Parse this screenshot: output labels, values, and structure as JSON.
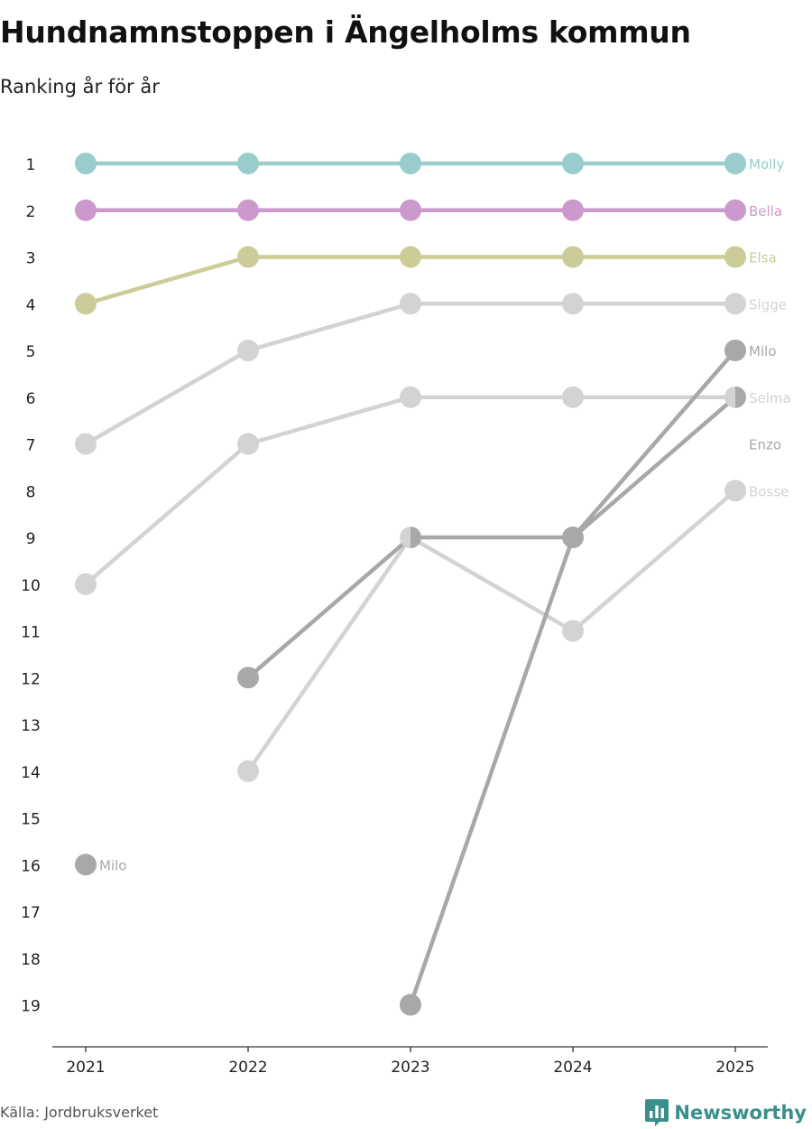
{
  "header": {
    "title": "Hundnamnstoppen i Ängelholms kommun",
    "subtitle": "Ranking år för år"
  },
  "footer": {
    "source": "Källa: Jordbruksverket",
    "brand": "Newsworthy",
    "brand_icon": "bar-chart-icon",
    "brand_color": "#3a8f8c"
  },
  "chart_data": {
    "type": "line",
    "title": "Hundnamnstoppen i Ängelholms kommun",
    "subtitle": "Ranking år för år",
    "x": [
      "2021",
      "2022",
      "2023",
      "2024",
      "2025"
    ],
    "y_ticks": [
      1,
      2,
      3,
      4,
      5,
      6,
      7,
      8,
      9,
      10,
      11,
      12,
      13,
      14,
      15,
      16,
      17,
      18,
      19
    ],
    "ylim": [
      1,
      19
    ],
    "y_inverted": true,
    "xlabel": "",
    "ylabel": "",
    "series": [
      {
        "name": "Bosse",
        "color": "#d3d3d3",
        "ranks": [
          null,
          14,
          9,
          11,
          8
        ]
      },
      {
        "name": "Sigge",
        "color": "#d3d3d3",
        "ranks": [
          7,
          5,
          4,
          4,
          4
        ]
      },
      {
        "name": "Selma",
        "color": "#d3d3d3",
        "ranks": [
          10,
          7,
          6,
          6,
          6
        ]
      },
      {
        "name": "Enzo",
        "color": "#a8a8a8",
        "ranks": [
          null,
          12,
          9,
          9,
          6
        ]
      },
      {
        "name": "Milo",
        "color": "#a8a8a8",
        "ranks": [
          16,
          null,
          19,
          9,
          5
        ]
      },
      {
        "name": "Elsa",
        "color": "#cccc99",
        "ranks": [
          4,
          3,
          3,
          3,
          3
        ]
      },
      {
        "name": "Bella",
        "color": "#cc99cc",
        "ranks": [
          2,
          2,
          2,
          2,
          2
        ]
      },
      {
        "name": "Molly",
        "color": "#99cccc",
        "ranks": [
          1,
          1,
          1,
          1,
          1
        ]
      }
    ],
    "end_labels": [
      {
        "name": "Molly",
        "rank": 1,
        "color": "#99cccc"
      },
      {
        "name": "Bella",
        "rank": 2,
        "color": "#cc99cc"
      },
      {
        "name": "Elsa",
        "rank": 3,
        "color": "#cccc99"
      },
      {
        "name": "Sigge",
        "rank": 4,
        "color": "#d3d3d3"
      },
      {
        "name": "Milo",
        "rank": 5,
        "color": "#a8a8a8"
      },
      {
        "name": "Selma",
        "rank": 6,
        "color": "#d3d3d3"
      },
      {
        "name": "Enzo",
        "rank": 7,
        "color": "#a8a8a8"
      },
      {
        "name": "Bosse",
        "rank": 8,
        "color": "#d3d3d3"
      }
    ],
    "annotations": [
      {
        "text": "Milo",
        "x": "2021",
        "rank": 16,
        "color": "#a8a8a8"
      }
    ]
  }
}
